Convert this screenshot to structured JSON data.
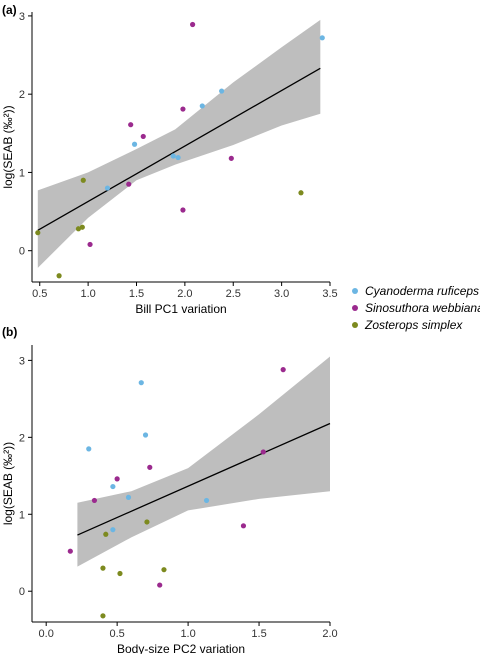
{
  "chart_data": [
    {
      "panel": "(a)",
      "type": "scatter",
      "xlabel": "Bill PC1 variation",
      "ylabel": "log(SEAB (‰²))",
      "xlim": [
        0.42,
        3.5
      ],
      "ylim": [
        -0.4,
        3.05
      ],
      "xticks": [
        "0.5",
        "1.0",
        "1.5",
        "2.0",
        "2.5",
        "3.0",
        "3.5"
      ],
      "yticks": [
        "0",
        "1",
        "2",
        "3"
      ],
      "fit_line": [
        [
          0.48,
          0.26
        ],
        [
          3.4,
          2.33
        ]
      ],
      "confidence_band": {
        "x": [
          0.48,
          1.0,
          1.5,
          1.9,
          2.5,
          3.0,
          3.4
        ],
        "upper": [
          0.77,
          1.0,
          1.3,
          1.55,
          2.15,
          2.6,
          2.95
        ],
        "lower": [
          -0.22,
          0.42,
          0.9,
          1.1,
          1.35,
          1.6,
          1.75
        ]
      },
      "series": [
        {
          "name": "Cyanoderma ruficeps",
          "color": "#6cb6e3",
          "points": [
            [
              3.42,
              2.72
            ],
            [
              2.38,
              2.04
            ],
            [
              2.18,
              1.85
            ],
            [
              1.48,
              1.36
            ],
            [
              1.93,
              1.19
            ],
            [
              1.88,
              1.21
            ],
            [
              1.2,
              0.8
            ]
          ]
        },
        {
          "name": "Sinosuthora webbiana",
          "color": "#9b2a8e",
          "points": [
            [
              2.08,
              2.89
            ],
            [
              1.98,
              1.81
            ],
            [
              1.44,
              1.61
            ],
            [
              1.57,
              1.46
            ],
            [
              2.48,
              1.18
            ],
            [
              1.42,
              0.85
            ],
            [
              1.98,
              0.52
            ],
            [
              1.02,
              0.08
            ]
          ]
        },
        {
          "name": "Zosterops simplex",
          "color": "#7d8a1f",
          "points": [
            [
              3.2,
              0.74
            ],
            [
              0.95,
              0.9
            ],
            [
              0.48,
              0.23
            ],
            [
              0.9,
              0.28
            ],
            [
              0.94,
              0.3
            ],
            [
              0.7,
              -0.32
            ]
          ]
        }
      ]
    },
    {
      "panel": "(b)",
      "type": "scatter",
      "xlabel": "Body-size PC2 variation",
      "ylabel": "log(SEAB (‰²))",
      "xlim": [
        -0.1,
        2.0
      ],
      "ylim": [
        -0.4,
        3.2
      ],
      "xticks": [
        "0.0",
        "0.5",
        "1.0",
        "1.5",
        "2.0"
      ],
      "yticks": [
        "0",
        "1",
        "2",
        "3"
      ],
      "fit_line": [
        [
          0.22,
          0.73
        ],
        [
          2.0,
          2.18
        ]
      ],
      "confidence_band": {
        "x": [
          0.22,
          0.6,
          1.0,
          1.5,
          2.0
        ],
        "upper": [
          1.15,
          1.3,
          1.6,
          2.3,
          3.05
        ],
        "lower": [
          0.32,
          0.7,
          1.05,
          1.2,
          1.3
        ]
      },
      "series": [
        {
          "name": "Cyanoderma ruficeps",
          "color": "#6cb6e3",
          "points": [
            [
              0.67,
              2.71
            ],
            [
              0.7,
              2.03
            ],
            [
              0.3,
              1.85
            ],
            [
              0.47,
              1.36
            ],
            [
              0.58,
              1.22
            ],
            [
              1.13,
              1.18
            ],
            [
              0.47,
              0.8
            ]
          ]
        },
        {
          "name": "Sinosuthora webbiana",
          "color": "#9b2a8e",
          "points": [
            [
              1.67,
              2.88
            ],
            [
              1.53,
              1.81
            ],
            [
              0.73,
              1.61
            ],
            [
              0.5,
              1.46
            ],
            [
              0.34,
              1.18
            ],
            [
              1.39,
              0.85
            ],
            [
              0.17,
              0.52
            ],
            [
              0.8,
              0.08
            ]
          ]
        },
        {
          "name": "Zosterops simplex",
          "color": "#7d8a1f",
          "points": [
            [
              0.71,
              0.9
            ],
            [
              0.42,
              0.74
            ],
            [
              0.4,
              0.3
            ],
            [
              0.52,
              0.23
            ],
            [
              0.83,
              0.28
            ],
            [
              0.4,
              -0.32
            ]
          ]
        }
      ]
    }
  ],
  "legend": {
    "position": "right",
    "items": [
      {
        "label": "Cyanoderma ruficeps",
        "color": "#6cb6e3"
      },
      {
        "label": "Sinosuthora webbiana",
        "color": "#9b2a8e"
      },
      {
        "label": "Zosterops simplex",
        "color": "#7d8a1f"
      }
    ]
  },
  "colors": {
    "band": "#bebebe",
    "fit_line": "#000000",
    "axis": "#000000"
  }
}
